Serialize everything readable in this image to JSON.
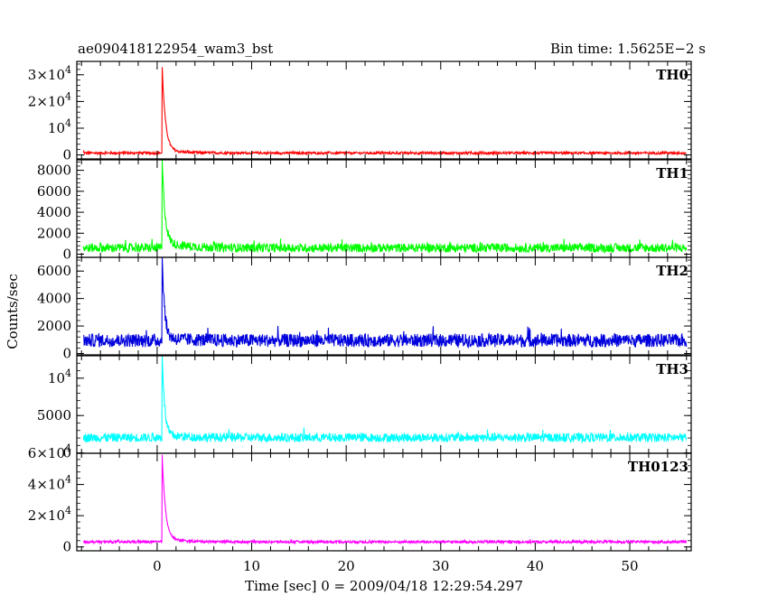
{
  "header": {
    "title": "ae090418122954_wam3_bst",
    "bin_time": "Bin time: 1.5625E−2 s"
  },
  "chart_data": {
    "type": "line",
    "title": "ae090418122954_wam3_bst",
    "bin_time": "Bin time: 1.5625E−2 s",
    "xlabel": "Time [sec] 0 = 2009/04/18 12:29:54.297",
    "ylabel": "Counts/sec",
    "xlim": [
      -8.5,
      56.5
    ],
    "data_xrange": [
      -7.8,
      56.0
    ],
    "x_ticks": [
      0,
      10,
      20,
      30,
      40,
      50
    ],
    "x_tick_labels": [
      "0",
      "10",
      "20",
      "30",
      "40",
      "50"
    ],
    "grid": false,
    "panels": [
      {
        "name": "TH0",
        "color": "#ff0000",
        "ylim": [
          -1500,
          35000
        ],
        "yticks": [
          {
            "v": 0,
            "label": "0"
          },
          {
            "v": 10000,
            "label": "10^4"
          },
          {
            "v": 20000,
            "label": "2×10^4"
          },
          {
            "v": 30000,
            "label": "3×10^4"
          }
        ],
        "baseline": 700,
        "noise": 450,
        "burst": {
          "t": 0.5,
          "peak": 34500,
          "decay": 0.35,
          "tail": 800
        }
      },
      {
        "name": "TH1",
        "color": "#00ff00",
        "ylim": [
          -300,
          9000
        ],
        "yticks": [
          {
            "v": 0,
            "label": "0"
          },
          {
            "v": 2000,
            "label": "2000"
          },
          {
            "v": 4000,
            "label": "4000"
          },
          {
            "v": 6000,
            "label": "6000"
          },
          {
            "v": 8000,
            "label": "8000"
          }
        ],
        "baseline": 600,
        "noise": 420,
        "burst": {
          "t": 0.5,
          "peak": 8800,
          "decay": 0.3,
          "tail": 500
        }
      },
      {
        "name": "TH2",
        "color": "#0000dd",
        "ylim": [
          -100,
          7000
        ],
        "yticks": [
          {
            "v": 0,
            "label": "0"
          },
          {
            "v": 2000,
            "label": "2000"
          },
          {
            "v": 4000,
            "label": "4000"
          },
          {
            "v": 6000,
            "label": "6000"
          }
        ],
        "baseline": 950,
        "noise": 480,
        "burst": {
          "t": 0.5,
          "peak": 7000,
          "decay": 0.25,
          "tail": 200
        }
      },
      {
        "name": "TH3",
        "color": "#00ffff",
        "ylim": [
          -50,
          13000
        ],
        "yticks": [
          {
            "v": 0,
            "label": "0"
          },
          {
            "v": 5000,
            "label": "5000"
          },
          {
            "v": 10000,
            "label": "10^4"
          }
        ],
        "baseline": 2050,
        "noise": 600,
        "burst": {
          "t": 0.5,
          "peak": 13000,
          "decay": 0.25,
          "tail": 300
        }
      },
      {
        "name": "TH0123",
        "color": "#ff00ff",
        "ylim": [
          -2500,
          60000
        ],
        "yticks": [
          {
            "v": 0,
            "label": "0"
          },
          {
            "v": 20000,
            "label": "2×10^4"
          },
          {
            "v": 40000,
            "label": "4×10^4"
          },
          {
            "v": 60000,
            "label": "6×10^4"
          }
        ],
        "baseline": 3200,
        "noise": 800,
        "burst": {
          "t": 0.5,
          "peak": 60000,
          "decay": 0.35,
          "tail": 1500
        }
      }
    ]
  }
}
